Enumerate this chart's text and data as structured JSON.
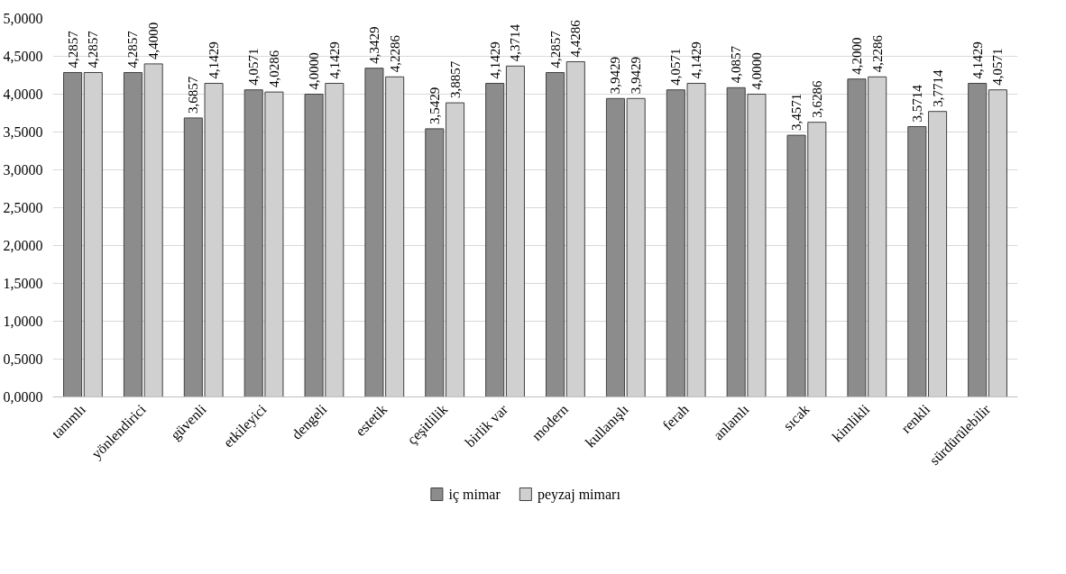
{
  "chart_data": {
    "type": "bar",
    "categories": [
      "tanımlı",
      "yönlendirici",
      "güvenli",
      "etkileyici",
      "dengeli",
      "estetik",
      "çeşitlilik",
      "birlik var",
      "modern",
      "kullanışlı",
      "ferah",
      "anlamlı",
      "sıcak",
      "kimlikli",
      "renkli",
      "sürdürülebilir"
    ],
    "series": [
      {
        "name": "iç mimar",
        "color": "#8c8c8c",
        "values": [
          4.2857,
          4.2857,
          3.6857,
          4.0571,
          4.0,
          4.3429,
          3.5429,
          4.1429,
          4.2857,
          3.9429,
          4.0571,
          4.0857,
          3.4571,
          4.2,
          3.5714,
          4.1429
        ],
        "value_labels": [
          "4,2857",
          "4,2857",
          "3,6857",
          "4,0571",
          "4,0000",
          "4,3429",
          "3,5429",
          "4,1429",
          "4,2857",
          "3,9429",
          "4,0571",
          "4,0857",
          "3,4571",
          "4,2000",
          "3,5714",
          "4,1429"
        ]
      },
      {
        "name": "peyzaj mimarı",
        "color": "#d0d0d0",
        "values": [
          4.2857,
          4.4,
          4.1429,
          4.0286,
          4.1429,
          4.2286,
          3.8857,
          4.3714,
          4.4286,
          3.9429,
          4.1429,
          4.0,
          3.6286,
          4.2286,
          3.7714,
          4.0571
        ],
        "value_labels": [
          "4,2857",
          "4,4000",
          "4,1429",
          "4,0286",
          "4,1429",
          "4,2286",
          "3,8857",
          "4,3714",
          "4,4286",
          "3,9429",
          "4,1429",
          "4,0000",
          "3,6286",
          "4,2286",
          "3,7714",
          "4,0571"
        ]
      }
    ],
    "ylim": [
      0,
      5
    ],
    "yticks": [
      {
        "value": 0,
        "label": "0,0000"
      },
      {
        "value": 0.5,
        "label": "0,5000"
      },
      {
        "value": 1,
        "label": "1,0000"
      },
      {
        "value": 1.5,
        "label": "1,5000"
      },
      {
        "value": 2,
        "label": "2,0000"
      },
      {
        "value": 2.5,
        "label": "2,5000"
      },
      {
        "value": 3,
        "label": "3,0000"
      },
      {
        "value": 3.5,
        "label": "3,5000"
      },
      {
        "value": 4,
        "label": "4,0000"
      },
      {
        "value": 4.5,
        "label": "4,5000"
      },
      {
        "value": 5,
        "label": "5,0000"
      }
    ],
    "grid": "y",
    "legend": "bottom"
  }
}
